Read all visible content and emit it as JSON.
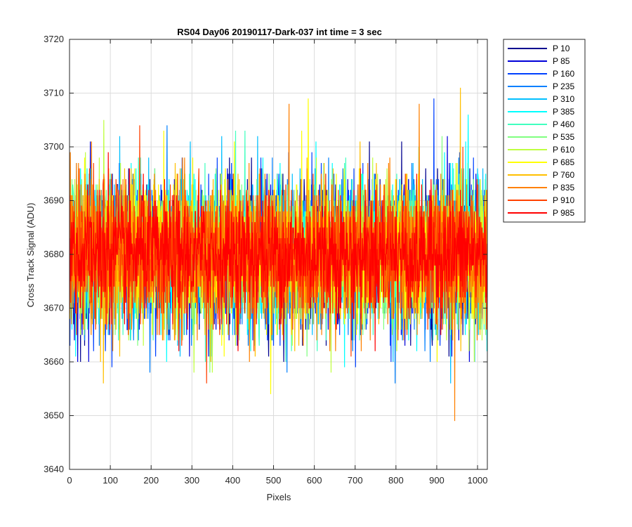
{
  "chart_data": {
    "type": "line",
    "title": "RS04 Day06 20190117-Dark-037 int time = 3 sec",
    "xlabel": "Pixels",
    "ylabel": "Cross Track Signal (ADU)",
    "xlim": [
      0,
      1024
    ],
    "ylim": [
      3640,
      3720
    ],
    "xticks": [
      0,
      100,
      200,
      300,
      400,
      500,
      600,
      700,
      800,
      900,
      1000
    ],
    "yticks": [
      3640,
      3650,
      3660,
      3670,
      3680,
      3690,
      3700,
      3710,
      3720
    ],
    "grid": true,
    "legend_position": "outside-top-right",
    "n_points": 1024,
    "series": [
      {
        "name": "P 10",
        "color": "#00008f",
        "mean": 3680,
        "spread": 6.5,
        "min": 3660,
        "max": 3701
      },
      {
        "name": "P 85",
        "color": "#0000d9",
        "mean": 3680,
        "spread": 6.5,
        "min": 3660,
        "max": 3702
      },
      {
        "name": "P 160",
        "color": "#0040ff",
        "mean": 3680,
        "spread": 6.5,
        "min": 3659,
        "max": 3709
      },
      {
        "name": "P 235",
        "color": "#0080ff",
        "mean": 3680,
        "spread": 6.5,
        "min": 3656,
        "max": 3704
      },
      {
        "name": "P 310",
        "color": "#00bfff",
        "mean": 3680,
        "spread": 6.5,
        "min": 3656,
        "max": 3702
      },
      {
        "name": "P 385",
        "color": "#00ffff",
        "mean": 3680,
        "spread": 6.5,
        "min": 3659,
        "max": 3706
      },
      {
        "name": "P 460",
        "color": "#40ffbf",
        "mean": 3680,
        "spread": 6.5,
        "min": 3660,
        "max": 3703
      },
      {
        "name": "P 535",
        "color": "#80ff80",
        "mean": 3680,
        "spread": 6.5,
        "min": 3658,
        "max": 3702
      },
      {
        "name": "P 610",
        "color": "#bfff40",
        "mean": 3680,
        "spread": 6.5,
        "min": 3658,
        "max": 3705
      },
      {
        "name": "P 685",
        "color": "#ffff00",
        "mean": 3680,
        "spread": 6.5,
        "min": 3654,
        "max": 3709
      },
      {
        "name": "P 760",
        "color": "#ffbf00",
        "mean": 3680,
        "spread": 6.5,
        "min": 3656,
        "max": 3711
      },
      {
        "name": "P 835",
        "color": "#ff8000",
        "mean": 3680,
        "spread": 6.5,
        "min": 3649,
        "max": 3708
      },
      {
        "name": "P 910",
        "color": "#ff4000",
        "mean": 3680,
        "spread": 6.5,
        "min": 3656,
        "max": 3704
      },
      {
        "name": "P 985",
        "color": "#ff0000",
        "mean": 3680,
        "spread": 5.5,
        "min": 3662,
        "max": 3699
      }
    ]
  }
}
